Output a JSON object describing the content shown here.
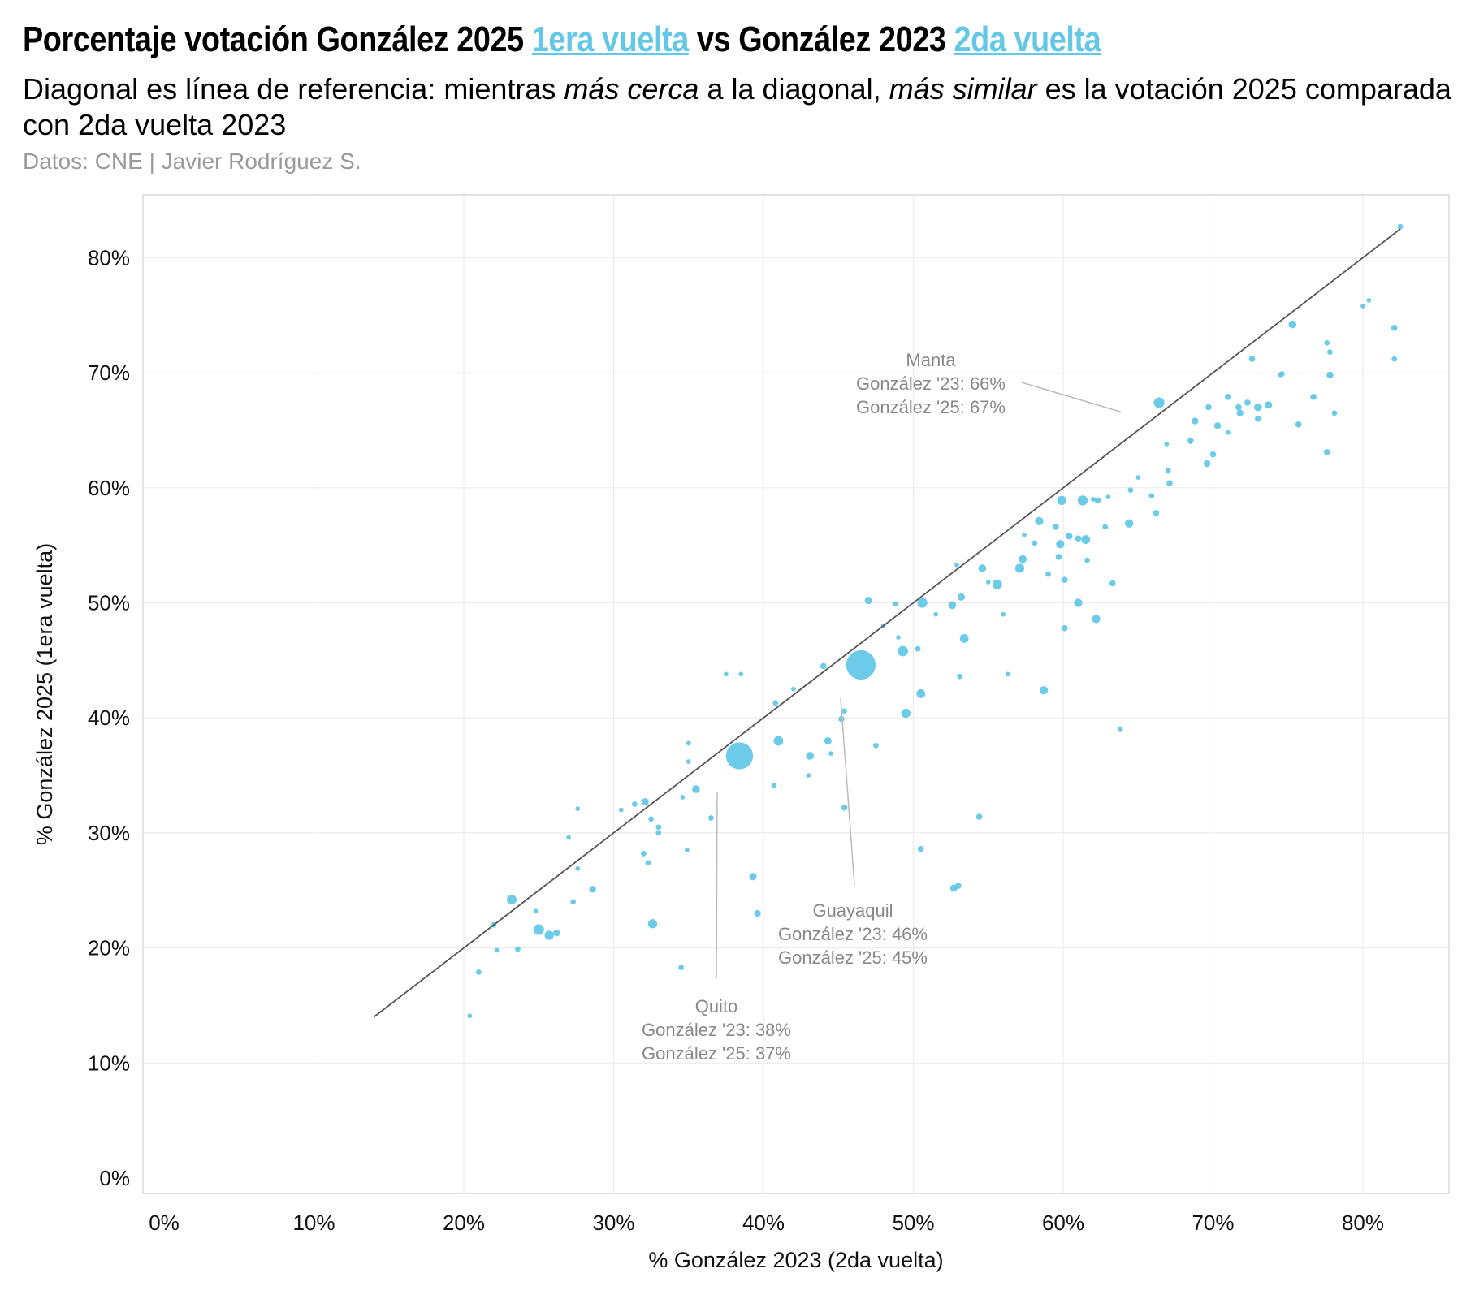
{
  "header": {
    "title_pre": "Porcentaje votación González 2025 ",
    "title_hl1": "1era vuelta",
    "title_mid": " vs González 2023 ",
    "title_hl2": "2da vuelta",
    "sub_1": "Diagonal es línea de referencia: mientras ",
    "sub_i1": "más cerca",
    "sub_2": " a la diagonal, ",
    "sub_i2": "más similar",
    "sub_3": " es la votación 2025 comparada con 2da vuelta 2023",
    "source": "Datos: CNE | Javier Rodríguez S."
  },
  "colors": {
    "points": "#63c8e8",
    "diagonal": "#555555",
    "grid": "#ececec",
    "annotation": "#888888"
  },
  "chart_data": {
    "type": "scatter",
    "title": "Porcentaje votación González 2025 1era vuelta vs González 2023 2da vuelta",
    "xlabel": "% González 2023 (2da vuelta)",
    "ylabel": "% González 2025 (1era vuelta)",
    "xlim": [
      0,
      85
    ],
    "ylim": [
      0,
      85
    ],
    "xticks": [
      "0%",
      "10%",
      "20%",
      "30%",
      "40%",
      "50%",
      "60%",
      "70%",
      "80%"
    ],
    "yticks": [
      "0%",
      "10%",
      "20%",
      "30%",
      "40%",
      "50%",
      "60%",
      "70%",
      "80%"
    ],
    "reference_line": {
      "from": [
        14,
        14
      ],
      "to": [
        82.5,
        82.5
      ]
    },
    "size_note": "point size ~ number of voters (relative units)",
    "points": [
      {
        "x": 38.4,
        "y": 36.7,
        "s": 100
      },
      {
        "x": 46.5,
        "y": 44.6,
        "s": 120
      },
      {
        "x": 66.4,
        "y": 67.4,
        "s": 14
      },
      {
        "x": 49.3,
        "y": 45.8,
        "s": 13
      },
      {
        "x": 50.6,
        "y": 50.0,
        "s": 12
      },
      {
        "x": 41.0,
        "y": 38.0,
        "s": 11
      },
      {
        "x": 25.0,
        "y": 21.6,
        "s": 14
      },
      {
        "x": 25.7,
        "y": 21.1,
        "s": 10
      },
      {
        "x": 23.2,
        "y": 24.2,
        "s": 11
      },
      {
        "x": 32.6,
        "y": 22.1,
        "s": 10
      },
      {
        "x": 61.3,
        "y": 58.9,
        "s": 12
      },
      {
        "x": 59.9,
        "y": 58.9,
        "s": 10
      },
      {
        "x": 61.5,
        "y": 55.5,
        "s": 9
      },
      {
        "x": 55.6,
        "y": 51.6,
        "s": 11
      },
      {
        "x": 57.1,
        "y": 53.0,
        "s": 10
      },
      {
        "x": 49.5,
        "y": 40.4,
        "s": 10
      },
      {
        "x": 50.5,
        "y": 42.1,
        "s": 9
      },
      {
        "x": 53.4,
        "y": 46.9,
        "s": 9
      },
      {
        "x": 58.7,
        "y": 42.4,
        "s": 8
      },
      {
        "x": 62.2,
        "y": 48.6,
        "s": 8
      },
      {
        "x": 64.4,
        "y": 56.9,
        "s": 8
      },
      {
        "x": 58.4,
        "y": 57.1,
        "s": 8
      },
      {
        "x": 75.3,
        "y": 74.2,
        "s": 7
      },
      {
        "x": 73.7,
        "y": 67.2,
        "s": 6
      },
      {
        "x": 73.0,
        "y": 67.0,
        "s": 7
      },
      {
        "x": 61.0,
        "y": 50.0,
        "s": 8
      },
      {
        "x": 59.8,
        "y": 55.1,
        "s": 8
      },
      {
        "x": 57.3,
        "y": 53.8,
        "s": 7
      },
      {
        "x": 52.6,
        "y": 49.8,
        "s": 7
      },
      {
        "x": 53.2,
        "y": 50.5,
        "s": 6
      },
      {
        "x": 54.6,
        "y": 53.0,
        "s": 7
      },
      {
        "x": 47.0,
        "y": 50.2,
        "s": 6
      },
      {
        "x": 43.1,
        "y": 36.7,
        "s": 7
      },
      {
        "x": 44.3,
        "y": 38.0,
        "s": 6
      },
      {
        "x": 35.5,
        "y": 33.8,
        "s": 7
      },
      {
        "x": 39.3,
        "y": 26.2,
        "s": 6
      },
      {
        "x": 39.6,
        "y": 23.0,
        "s": 5
      },
      {
        "x": 32.1,
        "y": 32.7,
        "s": 6
      },
      {
        "x": 28.6,
        "y": 25.1,
        "s": 5
      },
      {
        "x": 26.2,
        "y": 21.3,
        "s": 5
      },
      {
        "x": 52.7,
        "y": 25.2,
        "s": 6
      },
      {
        "x": 53.0,
        "y": 25.4,
        "s": 4
      },
      {
        "x": 54.4,
        "y": 31.4,
        "s": 4
      },
      {
        "x": 50.5,
        "y": 28.6,
        "s": 4
      },
      {
        "x": 45.4,
        "y": 32.2,
        "s": 4
      },
      {
        "x": 63.8,
        "y": 39.0,
        "s": 3
      },
      {
        "x": 60.1,
        "y": 47.8,
        "s": 4
      },
      {
        "x": 60.1,
        "y": 52.0,
        "s": 4
      },
      {
        "x": 59.7,
        "y": 54.0,
        "s": 4
      },
      {
        "x": 60.4,
        "y": 55.8,
        "s": 5
      },
      {
        "x": 61.0,
        "y": 55.6,
        "s": 4
      },
      {
        "x": 59.5,
        "y": 56.6,
        "s": 4
      },
      {
        "x": 63.3,
        "y": 51.7,
        "s": 4
      },
      {
        "x": 62.3,
        "y": 58.9,
        "s": 4
      },
      {
        "x": 65.9,
        "y": 59.3,
        "s": 3
      },
      {
        "x": 66.2,
        "y": 57.8,
        "s": 4
      },
      {
        "x": 67.1,
        "y": 60.4,
        "s": 4
      },
      {
        "x": 67.0,
        "y": 61.5,
        "s": 3
      },
      {
        "x": 68.5,
        "y": 64.1,
        "s": 4
      },
      {
        "x": 68.8,
        "y": 65.8,
        "s": 5
      },
      {
        "x": 69.7,
        "y": 67.0,
        "s": 4
      },
      {
        "x": 69.6,
        "y": 62.1,
        "s": 5
      },
      {
        "x": 70.0,
        "y": 62.9,
        "s": 4
      },
      {
        "x": 70.3,
        "y": 65.4,
        "s": 5
      },
      {
        "x": 71.0,
        "y": 67.9,
        "s": 4
      },
      {
        "x": 71.7,
        "y": 67.0,
        "s": 4
      },
      {
        "x": 71.8,
        "y": 66.5,
        "s": 5
      },
      {
        "x": 72.3,
        "y": 67.4,
        "s": 4
      },
      {
        "x": 72.6,
        "y": 71.2,
        "s": 4
      },
      {
        "x": 73.0,
        "y": 66.0,
        "s": 4
      },
      {
        "x": 74.6,
        "y": 69.9,
        "s": 3
      },
      {
        "x": 75.7,
        "y": 65.5,
        "s": 4
      },
      {
        "x": 76.7,
        "y": 67.9,
        "s": 4
      },
      {
        "x": 77.6,
        "y": 63.1,
        "s": 4
      },
      {
        "x": 77.8,
        "y": 69.8,
        "s": 5
      },
      {
        "x": 77.8,
        "y": 71.8,
        "s": 3
      },
      {
        "x": 77.6,
        "y": 72.6,
        "s": 3
      },
      {
        "x": 78.1,
        "y": 66.5,
        "s": 3
      },
      {
        "x": 80.0,
        "y": 75.8,
        "s": 2
      },
      {
        "x": 80.4,
        "y": 76.3,
        "s": 2
      },
      {
        "x": 82.1,
        "y": 73.9,
        "s": 4
      },
      {
        "x": 82.1,
        "y": 71.2,
        "s": 3
      },
      {
        "x": 82.5,
        "y": 82.7,
        "s": 3
      },
      {
        "x": 56.0,
        "y": 49.0,
        "s": 2
      },
      {
        "x": 55.0,
        "y": 51.8,
        "s": 2
      },
      {
        "x": 52.9,
        "y": 53.3,
        "s": 2
      },
      {
        "x": 51.5,
        "y": 49.0,
        "s": 2
      },
      {
        "x": 50.3,
        "y": 46.0,
        "s": 3
      },
      {
        "x": 49.0,
        "y": 47.0,
        "s": 2
      },
      {
        "x": 48.0,
        "y": 48.0,
        "s": 2
      },
      {
        "x": 47.5,
        "y": 37.6,
        "s": 3
      },
      {
        "x": 48.8,
        "y": 49.9,
        "s": 3
      },
      {
        "x": 44.0,
        "y": 44.5,
        "s": 4
      },
      {
        "x": 45.2,
        "y": 39.9,
        "s": 4
      },
      {
        "x": 45.4,
        "y": 40.6,
        "s": 3
      },
      {
        "x": 42.0,
        "y": 42.5,
        "s": 2
      },
      {
        "x": 40.8,
        "y": 41.3,
        "s": 3
      },
      {
        "x": 40.7,
        "y": 34.1,
        "s": 3
      },
      {
        "x": 38.5,
        "y": 43.8,
        "s": 2
      },
      {
        "x": 37.5,
        "y": 43.8,
        "s": 2
      },
      {
        "x": 36.5,
        "y": 31.3,
        "s": 3
      },
      {
        "x": 35.0,
        "y": 37.8,
        "s": 2
      },
      {
        "x": 35.0,
        "y": 36.2,
        "s": 2
      },
      {
        "x": 34.6,
        "y": 33.1,
        "s": 2
      },
      {
        "x": 34.9,
        "y": 28.5,
        "s": 2
      },
      {
        "x": 34.5,
        "y": 18.3,
        "s": 3
      },
      {
        "x": 33.0,
        "y": 30.5,
        "s": 3
      },
      {
        "x": 33.0,
        "y": 30.0,
        "s": 3
      },
      {
        "x": 32.5,
        "y": 31.2,
        "s": 3
      },
      {
        "x": 32.0,
        "y": 28.2,
        "s": 3
      },
      {
        "x": 32.3,
        "y": 27.4,
        "s": 3
      },
      {
        "x": 31.4,
        "y": 32.5,
        "s": 3
      },
      {
        "x": 30.5,
        "y": 32.0,
        "s": 2
      },
      {
        "x": 27.6,
        "y": 26.9,
        "s": 2
      },
      {
        "x": 27.3,
        "y": 24.0,
        "s": 3
      },
      {
        "x": 27.0,
        "y": 29.6,
        "s": 2
      },
      {
        "x": 27.6,
        "y": 32.1,
        "s": 2
      },
      {
        "x": 24.8,
        "y": 23.2,
        "s": 2
      },
      {
        "x": 22.0,
        "y": 22.0,
        "s": 3
      },
      {
        "x": 21.0,
        "y": 17.9,
        "s": 3
      },
      {
        "x": 20.4,
        "y": 14.1,
        "s": 2
      },
      {
        "x": 23.6,
        "y": 19.9,
        "s": 3
      },
      {
        "x": 22.2,
        "y": 19.8,
        "s": 2
      },
      {
        "x": 43.0,
        "y": 35.0,
        "s": 2
      },
      {
        "x": 44.5,
        "y": 36.9,
        "s": 2
      },
      {
        "x": 53.1,
        "y": 43.6,
        "s": 3
      },
      {
        "x": 56.3,
        "y": 43.8,
        "s": 2
      },
      {
        "x": 59.0,
        "y": 52.5,
        "s": 3
      },
      {
        "x": 61.6,
        "y": 53.7,
        "s": 3
      },
      {
        "x": 64.5,
        "y": 59.8,
        "s": 3
      },
      {
        "x": 65.0,
        "y": 60.9,
        "s": 2
      },
      {
        "x": 68.5,
        "y": 64.0,
        "s": 2
      },
      {
        "x": 62.8,
        "y": 56.6,
        "s": 3
      },
      {
        "x": 58.1,
        "y": 55.2,
        "s": 3
      },
      {
        "x": 57.4,
        "y": 55.9,
        "s": 2
      },
      {
        "x": 62.0,
        "y": 59.0,
        "s": 2
      },
      {
        "x": 71.0,
        "y": 64.8,
        "s": 2
      },
      {
        "x": 74.5,
        "y": 69.8,
        "s": 2
      },
      {
        "x": 63.0,
        "y": 59.2,
        "s": 2
      },
      {
        "x": 66.9,
        "y": 63.8,
        "s": 2
      }
    ],
    "annotations": [
      {
        "name": "Quito",
        "line1": "Quito",
        "line2": "González '23: 38%",
        "line3": "González '25: 37%",
        "x": 38.4,
        "y": 36.7
      },
      {
        "name": "Guayaquil",
        "line1": "Guayaquil",
        "line2": "González '23: 46%",
        "line3": "González '25: 45%",
        "x": 46.5,
        "y": 44.6
      },
      {
        "name": "Manta",
        "line1": "Manta",
        "line2": "González '23: 66%",
        "line3": "González '25: 67%",
        "x": 66.4,
        "y": 67.4
      }
    ]
  }
}
